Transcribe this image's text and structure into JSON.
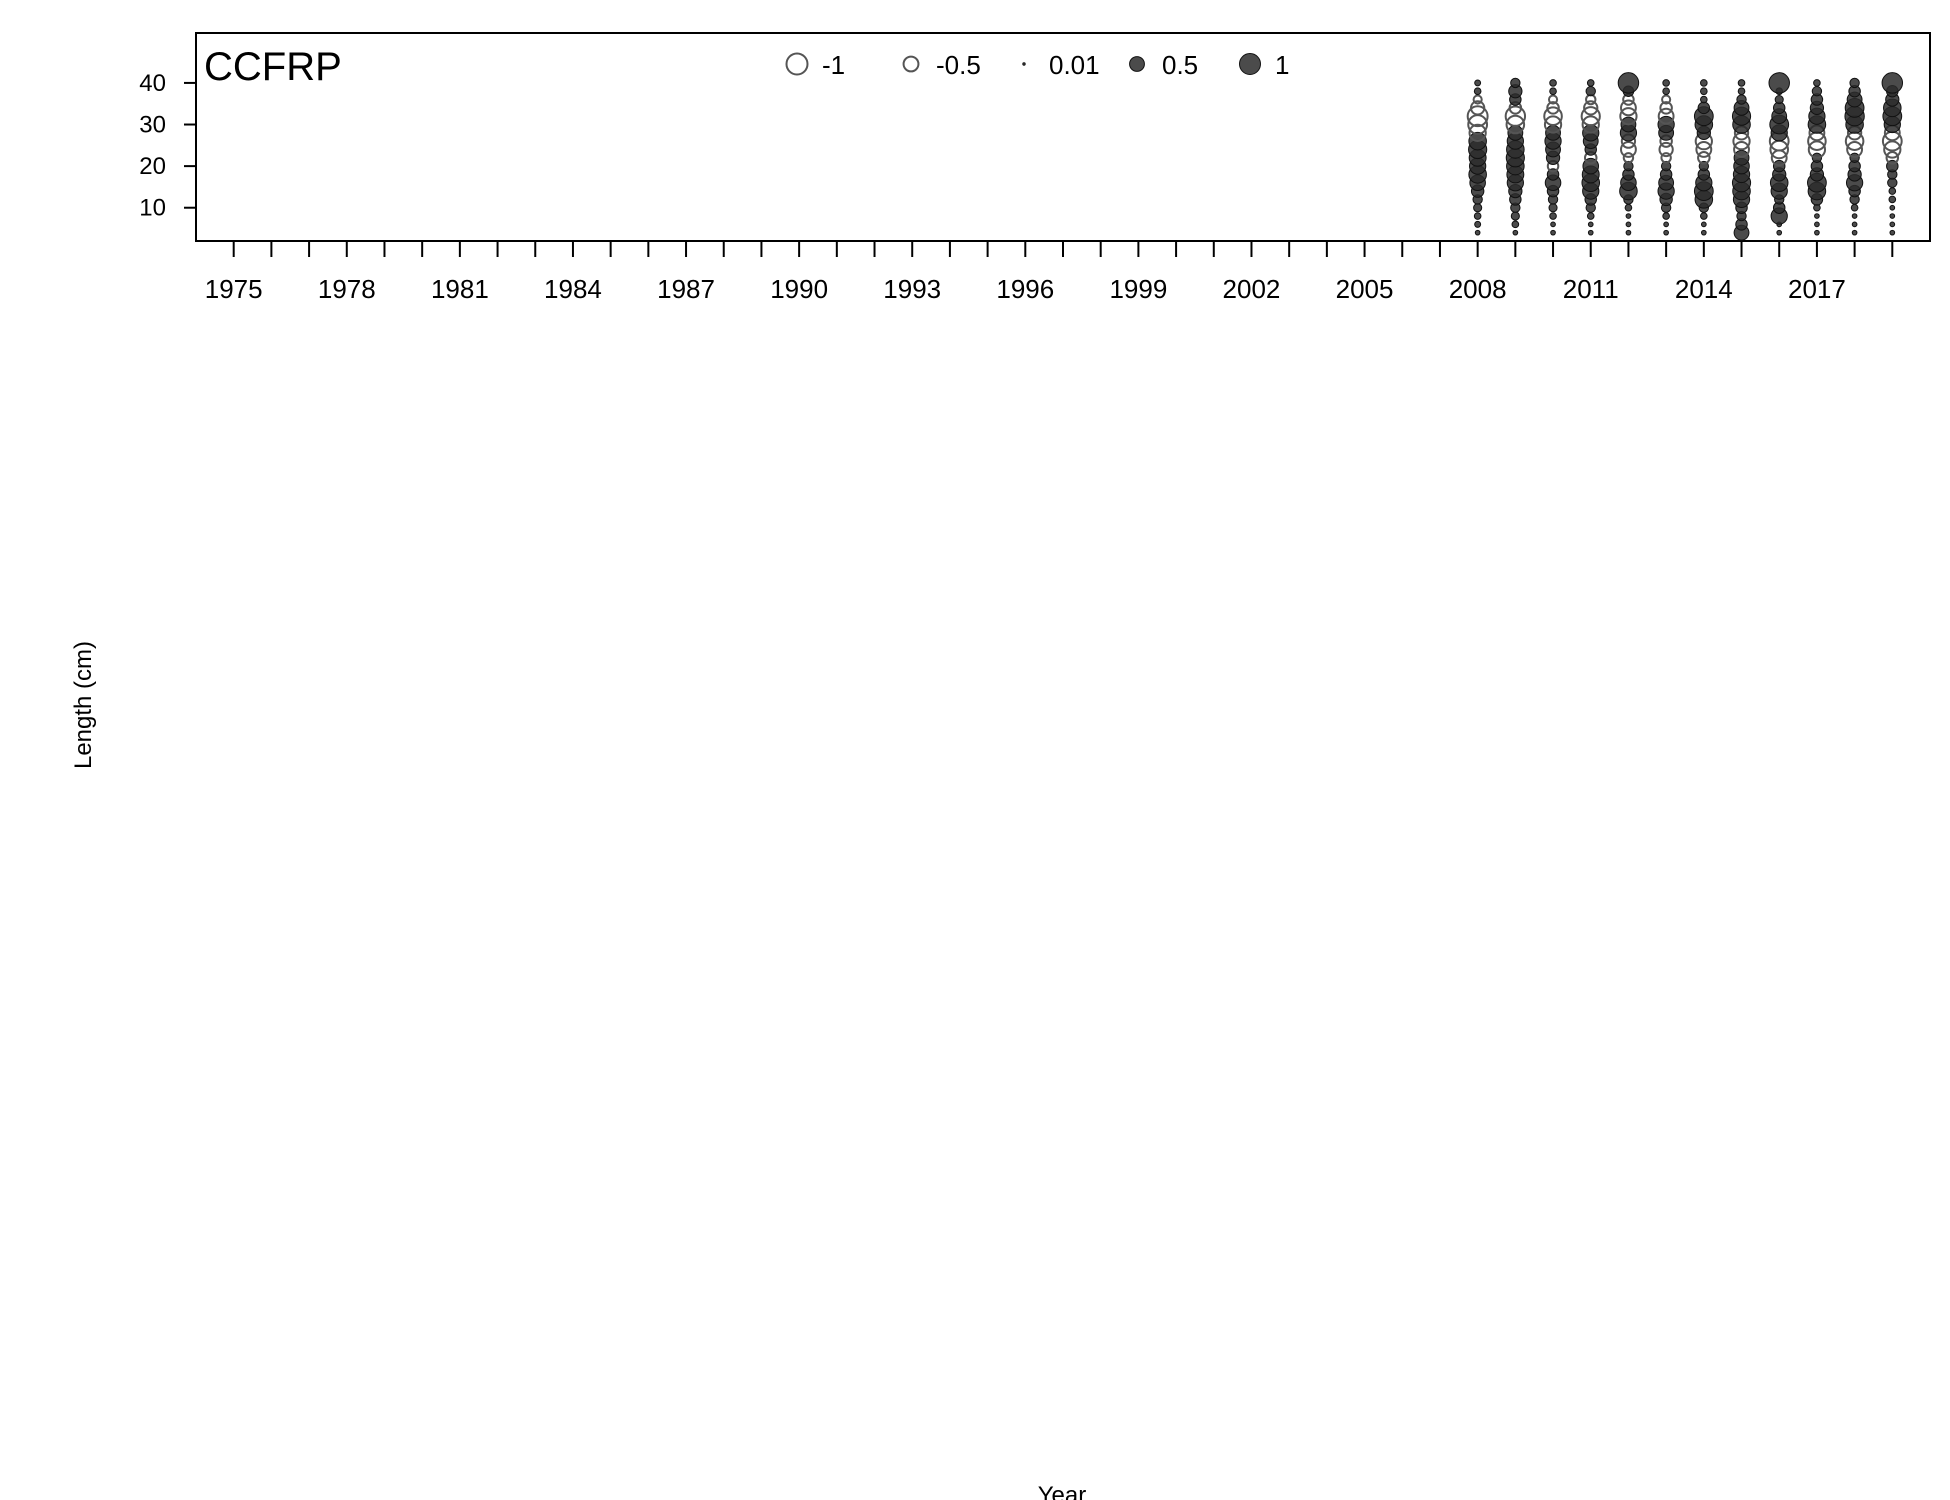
{
  "chart_data": {
    "type": "scatter",
    "panel_label": "CCFRP",
    "xlabel": "Year",
    "ylabel": "Length (cm)",
    "xlim": [
      1974,
      2020
    ],
    "ylim": [
      2,
      52
    ],
    "x_major_ticks": [
      1975,
      1978,
      1981,
      1984,
      1987,
      1990,
      1993,
      1996,
      1999,
      2002,
      2005,
      2008,
      2011,
      2014,
      2017
    ],
    "x_tick_labels": [
      "1975",
      "1978",
      "1981",
      "1984",
      "1987",
      "1990",
      "1993",
      "1996",
      "1999",
      "2002",
      "2005",
      "2008",
      "2011",
      "2014",
      "2017"
    ],
    "y_ticks": [
      10,
      20,
      30,
      40
    ],
    "y_tick_labels": [
      "10",
      "20",
      "30",
      "40"
    ],
    "grid": false,
    "legend": {
      "placement": "top-center",
      "entries": [
        {
          "label": "-1",
          "value": -1
        },
        {
          "label": "-0.5",
          "value": -0.5
        },
        {
          "label": "0.01",
          "value": 0.01
        },
        {
          "label": "0.5",
          "value": 0.5
        },
        {
          "label": "1",
          "value": 1
        }
      ]
    },
    "colors": {
      "positive_fill": "#2b2b2b",
      "negative_stroke": "#555555",
      "axis": "#000000"
    },
    "length_bins": [
      4,
      6,
      8,
      10,
      12,
      14,
      16,
      18,
      20,
      22,
      24,
      26,
      28,
      30,
      32,
      34,
      36,
      38,
      40
    ],
    "series": [
      {
        "year": 2008,
        "residuals": [
          0.05,
          0.08,
          0.1,
          0.15,
          0.2,
          0.35,
          0.55,
          0.7,
          0.6,
          0.65,
          0.75,
          0.7,
          -0.6,
          -0.8,
          -0.9,
          -0.4,
          -0.15,
          0.1,
          0.08
        ]
      },
      {
        "year": 2009,
        "residuals": [
          0.05,
          0.1,
          0.15,
          0.2,
          0.3,
          0.4,
          0.6,
          0.65,
          0.7,
          0.75,
          0.7,
          0.6,
          0.5,
          -0.7,
          -0.85,
          -0.3,
          0.3,
          0.4,
          0.2
        ]
      },
      {
        "year": 2010,
        "residuals": [
          0.05,
          0.05,
          0.1,
          0.15,
          0.2,
          0.3,
          0.55,
          0.3,
          -0.25,
          0.4,
          0.5,
          0.6,
          0.5,
          -0.6,
          -0.7,
          -0.3,
          -0.15,
          0.1,
          0.1
        ]
      },
      {
        "year": 2011,
        "residuals": [
          0.05,
          0.05,
          0.1,
          0.2,
          0.3,
          0.6,
          0.7,
          0.65,
          0.55,
          -0.3,
          0.3,
          0.5,
          0.6,
          -0.6,
          -0.75,
          -0.4,
          -0.2,
          0.2,
          0.1
        ]
      },
      {
        "year": 2012,
        "residuals": [
          0.05,
          0.05,
          0.05,
          0.1,
          0.2,
          0.7,
          0.55,
          0.3,
          0.2,
          -0.2,
          -0.5,
          -0.4,
          0.6,
          0.5,
          -0.6,
          -0.5,
          -0.25,
          0.25,
          0.95
        ]
      },
      {
        "year": 2013,
        "residuals": [
          0.05,
          0.05,
          0.1,
          0.2,
          0.35,
          0.6,
          0.5,
          0.3,
          0.2,
          -0.2,
          -0.4,
          -0.3,
          0.5,
          0.6,
          -0.5,
          -0.3,
          -0.15,
          0.1,
          0.1
        ]
      },
      {
        "year": 2014,
        "residuals": [
          0.05,
          0.05,
          0.1,
          0.2,
          0.7,
          0.8,
          0.6,
          0.3,
          0.2,
          -0.3,
          -0.5,
          -0.6,
          0.4,
          0.7,
          0.8,
          0.3,
          0.1,
          0.1,
          0.1
        ]
      },
      {
        "year": 2015,
        "residuals": [
          0.5,
          0.3,
          0.2,
          0.3,
          0.6,
          0.7,
          0.75,
          0.6,
          0.55,
          0.5,
          -0.5,
          -0.6,
          -0.4,
          0.7,
          0.75,
          0.5,
          0.2,
          0.1,
          0.1
        ]
      },
      {
        "year": 2016,
        "residuals": [
          0.05,
          0.05,
          0.6,
          0.3,
          0.2,
          0.6,
          0.7,
          0.4,
          0.3,
          -0.5,
          -0.7,
          -0.8,
          0.6,
          0.8,
          0.5,
          0.3,
          0.15,
          0.1,
          0.95
        ]
      },
      {
        "year": 2017,
        "residuals": [
          0.05,
          0.05,
          0.05,
          0.1,
          0.3,
          0.7,
          0.8,
          0.4,
          0.3,
          0.2,
          -0.6,
          -0.7,
          -0.5,
          0.7,
          0.6,
          0.4,
          0.3,
          0.2,
          0.1
        ]
      },
      {
        "year": 2018,
        "residuals": [
          0.05,
          0.05,
          0.05,
          0.1,
          0.2,
          0.3,
          0.6,
          0.4,
          0.3,
          0.2,
          -0.5,
          -0.7,
          -0.4,
          0.7,
          0.85,
          0.8,
          0.5,
          0.3,
          0.2
        ]
      },
      {
        "year": 2019,
        "residuals": [
          0.05,
          0.05,
          0.05,
          0.05,
          0.1,
          0.1,
          0.2,
          0.2,
          0.3,
          -0.3,
          -0.6,
          -0.8,
          -0.5,
          0.6,
          0.8,
          0.7,
          0.4,
          0.3,
          0.95
        ]
      }
    ]
  }
}
